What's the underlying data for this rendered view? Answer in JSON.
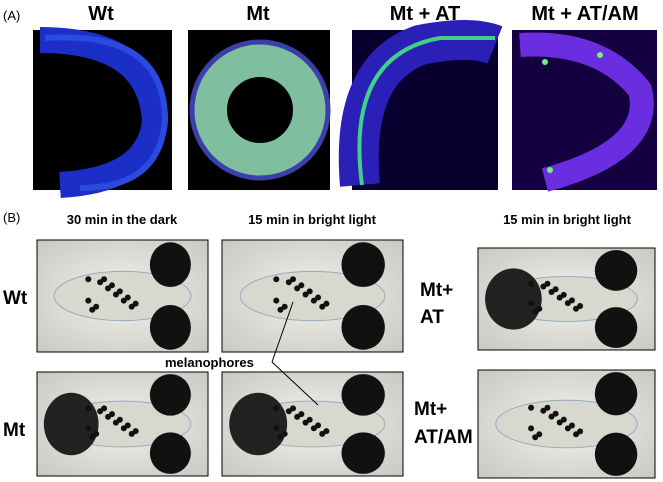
{
  "panel_a": {
    "label": "(A)",
    "columns": [
      "Wt",
      "Mt",
      "Mt + AT",
      "Mt + AT/AM"
    ]
  },
  "panel_b": {
    "label": "(B)",
    "column_headers": [
      "30 min in the dark",
      "15 min in bright light",
      "15 min in bright light"
    ],
    "row_labels_left": [
      "Wt",
      "Mt"
    ],
    "row_labels_right": [
      [
        "Mt+",
        "AT"
      ],
      [
        "Mt+",
        "AT/AM"
      ]
    ],
    "annotation": "melanophores"
  }
}
